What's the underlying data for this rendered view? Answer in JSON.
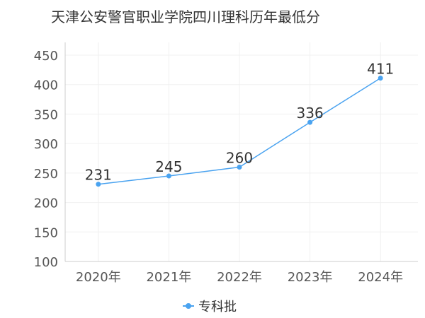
{
  "chart_data": {
    "type": "line",
    "title": "天津公安警官职业学院四川理科历年最低分",
    "categories": [
      "2020年",
      "2021年",
      "2022年",
      "2023年",
      "2024年"
    ],
    "series": [
      {
        "name": "专科批",
        "values": [
          231,
          245,
          260,
          336,
          411
        ],
        "color": "#4aa3f0"
      }
    ],
    "ylim": [
      100,
      450
    ],
    "yticks": [
      100,
      150,
      200,
      250,
      300,
      350,
      400,
      450
    ],
    "xlabel": "",
    "ylabel": "",
    "grid": true,
    "legend_position": "bottom"
  }
}
